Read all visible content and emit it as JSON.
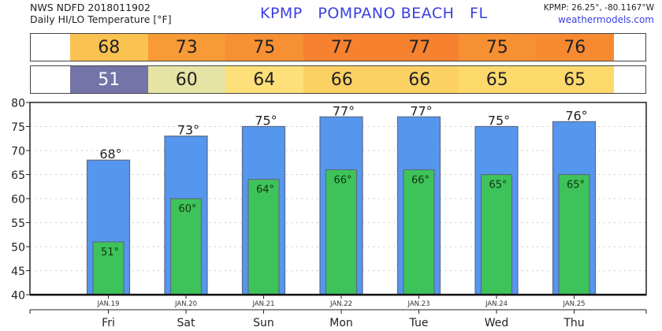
{
  "header": {
    "source_line": "NWS NDFD 2018011902",
    "product_line": "Daily HI/LO Temperature [°F]",
    "title": "KPMP   POMPANO BEACH   FL",
    "coords": "KPMP: 26.25°, -80.1167°W",
    "site": "weathermodels.com"
  },
  "colors": {
    "title": "#3a3fe0",
    "hi_bar": "#5596ee",
    "lo_bar": "#3ec35a",
    "bar_edge": "#5a6b86"
  },
  "hi_band": [
    {
      "value": "68",
      "color": "#f9c251"
    },
    {
      "value": "73",
      "color": "#f89a36"
    },
    {
      "value": "75",
      "color": "#f78f33"
    },
    {
      "value": "77",
      "color": "#f6812f"
    },
    {
      "value": "77",
      "color": "#f6812f"
    },
    {
      "value": "75",
      "color": "#f78f33"
    },
    {
      "value": "76",
      "color": "#f78a31"
    }
  ],
  "lo_band": [
    {
      "value": "51",
      "color": "#7474a8",
      "text_color": "#ffffff"
    },
    {
      "value": "60",
      "color": "#e6e4a4",
      "text_color": "#222222"
    },
    {
      "value": "64",
      "color": "#fde079",
      "text_color": "#222222"
    },
    {
      "value": "66",
      "color": "#fcd163",
      "text_color": "#222222"
    },
    {
      "value": "66",
      "color": "#fcd163",
      "text_color": "#222222"
    },
    {
      "value": "65",
      "color": "#fdd96c",
      "text_color": "#222222"
    },
    {
      "value": "65",
      "color": "#fdd96c",
      "text_color": "#222222"
    }
  ],
  "chart_data": {
    "type": "bar",
    "title": "Daily HI/LO Temperature [°F]",
    "categories": [
      "Fri",
      "Sat",
      "Sun",
      "Mon",
      "Tue",
      "Wed",
      "Thu"
    ],
    "dates": [
      "JAN.19",
      "JAN.20",
      "JAN.21",
      "JAN.22",
      "JAN.23",
      "JAN.24",
      "JAN.25"
    ],
    "series": [
      {
        "name": "High",
        "values": [
          68,
          73,
          75,
          77,
          77,
          75,
          76
        ],
        "labels": [
          "68°",
          "73°",
          "75°",
          "77°",
          "77°",
          "75°",
          "76°"
        ]
      },
      {
        "name": "Low",
        "values": [
          51,
          60,
          64,
          66,
          66,
          65,
          65
        ],
        "labels": [
          "51°",
          "60°",
          "64°",
          "66°",
          "66°",
          "65°",
          "65°"
        ]
      }
    ],
    "ylim": [
      40,
      80
    ],
    "yticks": [
      "40",
      "45",
      "50",
      "55",
      "60",
      "65",
      "70",
      "75",
      "80"
    ],
    "grid": true,
    "xlabel": "",
    "ylabel": ""
  }
}
